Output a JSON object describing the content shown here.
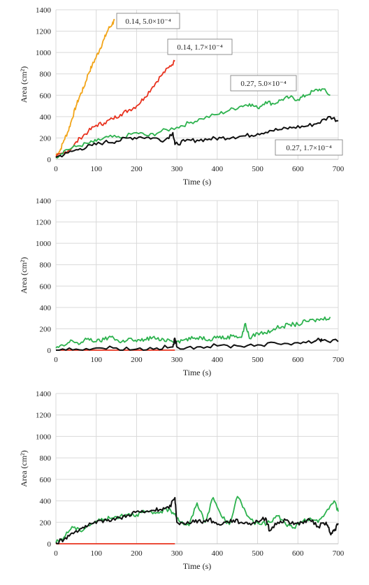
{
  "chart_data": [
    {
      "type": "line",
      "xlabel": "Time (s)",
      "ylabel": "Area (cm²)",
      "xlim": [
        0,
        700
      ],
      "ylim": [
        0,
        1400
      ],
      "xticks": [
        0,
        100,
        200,
        300,
        400,
        500,
        600,
        700
      ],
      "yticks": [
        0,
        200,
        400,
        600,
        800,
        1000,
        1200,
        1400
      ],
      "grid": true,
      "colors": {
        "orange": "#f2a51a",
        "red": "#e8321e",
        "green": "#2db24e",
        "black": "#111111"
      },
      "series": [
        {
          "name": "0.14, 5.0×10⁻⁴",
          "color": "#f2a51a",
          "points": [
            [
              0,
              40
            ],
            [
              10,
              80
            ],
            [
              20,
              180
            ],
            [
              30,
              260
            ],
            [
              40,
              380
            ],
            [
              50,
              500
            ],
            [
              60,
              600
            ],
            [
              70,
              680
            ],
            [
              80,
              800
            ],
            [
              90,
              880
            ],
            [
              100,
              960
            ],
            [
              110,
              1040
            ],
            [
              120,
              1130
            ],
            [
              130,
              1220
            ],
            [
              140,
              1270
            ],
            [
              145,
              1300
            ]
          ]
        },
        {
          "name": "0.14, 1.7×10⁻⁴",
          "color": "#e8321e",
          "points": [
            [
              0,
              20
            ],
            [
              20,
              60
            ],
            [
              40,
              110
            ],
            [
              60,
              200
            ],
            [
              80,
              260
            ],
            [
              100,
              320
            ],
            [
              120,
              340
            ],
            [
              140,
              380
            ],
            [
              160,
              420
            ],
            [
              180,
              460
            ],
            [
              200,
              500
            ],
            [
              220,
              580
            ],
            [
              240,
              680
            ],
            [
              260,
              780
            ],
            [
              280,
              860
            ],
            [
              295,
              920
            ]
          ]
        },
        {
          "name": "0.27, 5.0×10⁻⁴",
          "color": "#2db24e",
          "points": [
            [
              0,
              20
            ],
            [
              20,
              80
            ],
            [
              50,
              120
            ],
            [
              80,
              150
            ],
            [
              100,
              170
            ],
            [
              130,
              210
            ],
            [
              160,
              200
            ],
            [
              200,
              250
            ],
            [
              230,
              220
            ],
            [
              260,
              260
            ],
            [
              300,
              300
            ],
            [
              330,
              340
            ],
            [
              360,
              380
            ],
            [
              400,
              420
            ],
            [
              430,
              460
            ],
            [
              460,
              500
            ],
            [
              480,
              520
            ],
            [
              500,
              480
            ],
            [
              520,
              540
            ],
            [
              540,
              520
            ],
            [
              560,
              560
            ],
            [
              580,
              580
            ],
            [
              600,
              560
            ],
            [
              620,
              600
            ],
            [
              640,
              640
            ],
            [
              660,
              660
            ],
            [
              680,
              600
            ]
          ]
        },
        {
          "name": "0.27, 1.7×10⁻⁴",
          "color": "#111111",
          "points": [
            [
              0,
              20
            ],
            [
              30,
              60
            ],
            [
              60,
              100
            ],
            [
              90,
              130
            ],
            [
              120,
              160
            ],
            [
              150,
              170
            ],
            [
              180,
              200
            ],
            [
              210,
              210
            ],
            [
              240,
              200
            ],
            [
              270,
              180
            ],
            [
              290,
              250
            ],
            [
              295,
              140
            ],
            [
              320,
              170
            ],
            [
              350,
              180
            ],
            [
              380,
              190
            ],
            [
              410,
              200
            ],
            [
              440,
              210
            ],
            [
              470,
              220
            ],
            [
              500,
              240
            ],
            [
              530,
              270
            ],
            [
              560,
              280
            ],
            [
              590,
              300
            ],
            [
              620,
              310
            ],
            [
              650,
              340
            ],
            [
              680,
              400
            ],
            [
              700,
              360
            ]
          ]
        }
      ],
      "annotations": [
        {
          "text": "0.14, 5.0×10⁻⁴"
        },
        {
          "text": "0.14, 1.7×10⁻⁴"
        },
        {
          "text": "0.27, 5.0×10⁻⁴"
        },
        {
          "text": "0.27, 1.7×10⁻⁴"
        }
      ]
    },
    {
      "type": "line",
      "xlabel": "Time (s)",
      "ylabel": "Area (cm²)",
      "xlim": [
        0,
        700
      ],
      "ylim": [
        0,
        1400
      ],
      "xticks": [
        0,
        100,
        200,
        300,
        400,
        500,
        600,
        700
      ],
      "yticks": [
        0,
        200,
        400,
        600,
        800,
        1000,
        1200,
        1400
      ],
      "grid": true,
      "series": [
        {
          "color": "#e8321e",
          "points": [
            [
              0,
              0
            ],
            [
              100,
              0
            ],
            [
              200,
              0
            ],
            [
              295,
              0
            ]
          ]
        },
        {
          "color": "#2db24e",
          "points": [
            [
              0,
              20
            ],
            [
              20,
              40
            ],
            [
              40,
              90
            ],
            [
              60,
              60
            ],
            [
              80,
              110
            ],
            [
              100,
              80
            ],
            [
              120,
              100
            ],
            [
              140,
              130
            ],
            [
              160,
              70
            ],
            [
              180,
              110
            ],
            [
              200,
              80
            ],
            [
              220,
              100
            ],
            [
              240,
              120
            ],
            [
              260,
              90
            ],
            [
              280,
              100
            ],
            [
              300,
              80
            ],
            [
              320,
              100
            ],
            [
              340,
              110
            ],
            [
              360,
              120
            ],
            [
              380,
              100
            ],
            [
              400,
              130
            ],
            [
              420,
              110
            ],
            [
              440,
              140
            ],
            [
              460,
              120
            ],
            [
              470,
              250
            ],
            [
              480,
              110
            ],
            [
              500,
              160
            ],
            [
              520,
              160
            ],
            [
              540,
              200
            ],
            [
              560,
              220
            ],
            [
              580,
              240
            ],
            [
              600,
              240
            ],
            [
              620,
              270
            ],
            [
              640,
              280
            ],
            [
              660,
              290
            ],
            [
              680,
              310
            ]
          ]
        },
        {
          "color": "#111111",
          "points": [
            [
              0,
              0
            ],
            [
              50,
              10
            ],
            [
              100,
              20
            ],
            [
              150,
              20
            ],
            [
              200,
              10
            ],
            [
              250,
              20
            ],
            [
              290,
              30
            ],
            [
              295,
              110
            ],
            [
              300,
              30
            ],
            [
              350,
              30
            ],
            [
              400,
              40
            ],
            [
              450,
              40
            ],
            [
              500,
              50
            ],
            [
              550,
              60
            ],
            [
              600,
              70
            ],
            [
              640,
              80
            ],
            [
              650,
              110
            ],
            [
              660,
              90
            ],
            [
              700,
              80
            ]
          ]
        }
      ]
    },
    {
      "type": "line",
      "xlabel": "Time (s)",
      "ylabel": "Area (cm²)",
      "xlim": [
        0,
        700
      ],
      "ylim": [
        0,
        1400
      ],
      "xticks": [
        0,
        100,
        200,
        300,
        400,
        500,
        600,
        700
      ],
      "yticks": [
        0,
        200,
        400,
        600,
        800,
        1000,
        1200,
        1400
      ],
      "grid": true,
      "series": [
        {
          "color": "#e8321e",
          "points": [
            [
              0,
              0
            ],
            [
              100,
              0
            ],
            [
              200,
              0
            ],
            [
              295,
              0
            ]
          ]
        },
        {
          "color": "#2db24e",
          "points": [
            [
              0,
              10
            ],
            [
              20,
              60
            ],
            [
              40,
              160
            ],
            [
              60,
              120
            ],
            [
              80,
              170
            ],
            [
              100,
              210
            ],
            [
              120,
              230
            ],
            [
              140,
              240
            ],
            [
              160,
              260
            ],
            [
              180,
              280
            ],
            [
              200,
              270
            ],
            [
              220,
              300
            ],
            [
              240,
              280
            ],
            [
              260,
              300
            ],
            [
              280,
              320
            ],
            [
              295,
              280
            ],
            [
              310,
              200
            ],
            [
              330,
              170
            ],
            [
              350,
              380
            ],
            [
              370,
              200
            ],
            [
              390,
              430
            ],
            [
              410,
              260
            ],
            [
              430,
              180
            ],
            [
              450,
              440
            ],
            [
              470,
              300
            ],
            [
              490,
              200
            ],
            [
              510,
              180
            ],
            [
              530,
              200
            ],
            [
              550,
              260
            ],
            [
              570,
              180
            ],
            [
              590,
              150
            ],
            [
              610,
              200
            ],
            [
              630,
              240
            ],
            [
              650,
              200
            ],
            [
              670,
              300
            ],
            [
              690,
              400
            ],
            [
              700,
              300
            ]
          ]
        },
        {
          "color": "#111111",
          "points": [
            [
              0,
              10
            ],
            [
              20,
              40
            ],
            [
              40,
              100
            ],
            [
              60,
              140
            ],
            [
              80,
              170
            ],
            [
              100,
              190
            ],
            [
              120,
              220
            ],
            [
              140,
              230
            ],
            [
              160,
              240
            ],
            [
              180,
              270
            ],
            [
              200,
              300
            ],
            [
              220,
              290
            ],
            [
              240,
              310
            ],
            [
              260,
              320
            ],
            [
              280,
              330
            ],
            [
              295,
              430
            ],
            [
              300,
              200
            ],
            [
              320,
              180
            ],
            [
              340,
              220
            ],
            [
              360,
              200
            ],
            [
              380,
              230
            ],
            [
              400,
              180
            ],
            [
              420,
              200
            ],
            [
              440,
              220
            ],
            [
              460,
              200
            ],
            [
              480,
              190
            ],
            [
              500,
              210
            ],
            [
              520,
              240
            ],
            [
              530,
              120
            ],
            [
              550,
              200
            ],
            [
              570,
              220
            ],
            [
              590,
              180
            ],
            [
              610,
              200
            ],
            [
              630,
              220
            ],
            [
              650,
              160
            ],
            [
              670,
              200
            ],
            [
              680,
              100
            ],
            [
              690,
              120
            ],
            [
              700,
              190
            ]
          ]
        }
      ]
    }
  ]
}
